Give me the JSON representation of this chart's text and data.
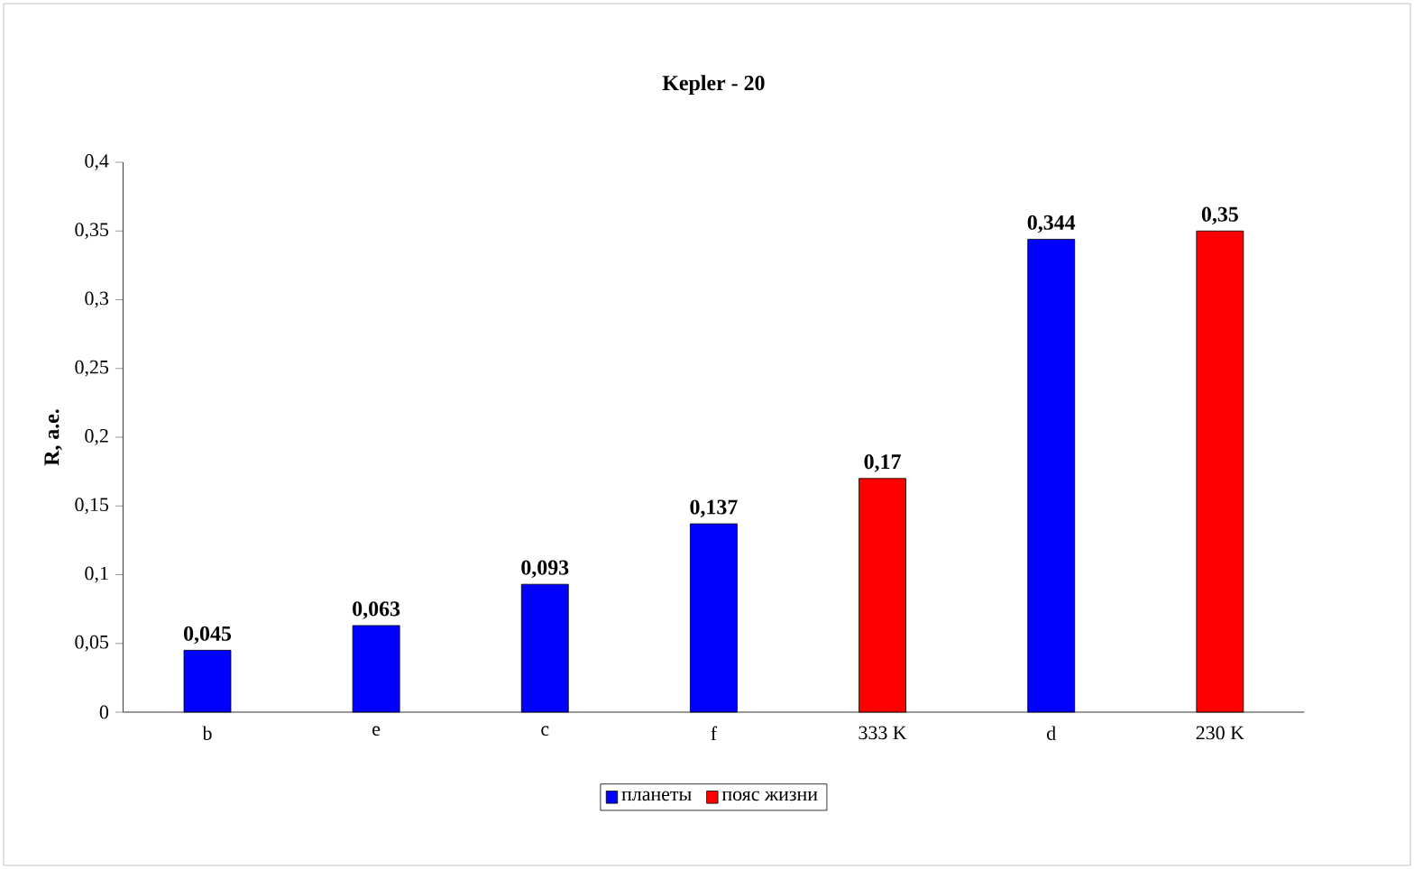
{
  "chart_data": {
    "type": "bar",
    "title": "Kepler - 20",
    "ylabel": "R, а.е.",
    "categories": [
      "b",
      "e",
      "c",
      "f",
      "333 K",
      "d",
      "230 K"
    ],
    "series": [
      {
        "name": "планеты",
        "color": "#0000ff",
        "values": [
          0.045,
          0.063,
          0.093,
          0.137,
          null,
          0.344,
          null
        ],
        "value_labels": [
          "0,045",
          "0,063",
          "0,093",
          "0,137",
          null,
          "0,344",
          null
        ]
      },
      {
        "name": "пояс жизни",
        "color": "#ff0000",
        "values": [
          null,
          null,
          null,
          null,
          0.17,
          null,
          0.35
        ],
        "value_labels": [
          null,
          null,
          null,
          null,
          "0,17",
          null,
          "0,35"
        ]
      }
    ],
    "ylim": [
      0,
      0.4
    ],
    "yticks": [
      0,
      {
        "value": 0.05,
        "label": "0,05"
      },
      {
        "value": 0.1,
        "label": "0,1"
      },
      {
        "value": 0.15,
        "label": "0,15"
      },
      {
        "value": 0.2,
        "label": "0,2"
      },
      {
        "value": 0.25,
        "label": "0,25"
      },
      {
        "value": 0.3,
        "label": "0,3"
      },
      {
        "value": 0.35,
        "label": "0,35"
      },
      {
        "value": 0.4,
        "label": "0,4"
      }
    ],
    "grid": false,
    "legend": "bottom"
  }
}
